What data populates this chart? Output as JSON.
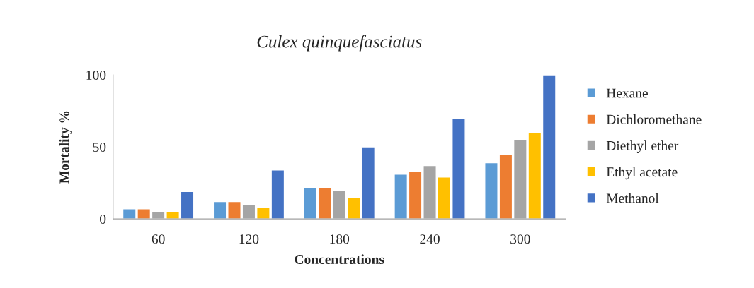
{
  "chart_data": {
    "type": "bar",
    "title": "Culex quinquefasciatus",
    "xlabel": "Concentrations",
    "ylabel": "Mortality %",
    "categories": [
      "60",
      "120",
      "180",
      "240",
      "300"
    ],
    "series": [
      {
        "name": "Hexane",
        "color": "#5b9bd5",
        "values": [
          7,
          12,
          22,
          31,
          39
        ]
      },
      {
        "name": "Dichloromethane",
        "color": "#ed7d31",
        "values": [
          7,
          12,
          22,
          33,
          45
        ]
      },
      {
        "name": "Diethyl ether",
        "color": "#a5a5a5",
        "values": [
          5,
          10,
          20,
          37,
          55
        ]
      },
      {
        "name": "Ethyl acetate",
        "color": "#ffc000",
        "values": [
          5,
          8,
          15,
          29,
          60
        ]
      },
      {
        "name": "Methanol",
        "color": "#4472c4",
        "values": [
          19,
          34,
          50,
          70,
          100
        ]
      }
    ],
    "ylim": [
      0,
      100
    ],
    "yticks": [
      0,
      50,
      100
    ],
    "grid": false,
    "legend": "right"
  }
}
